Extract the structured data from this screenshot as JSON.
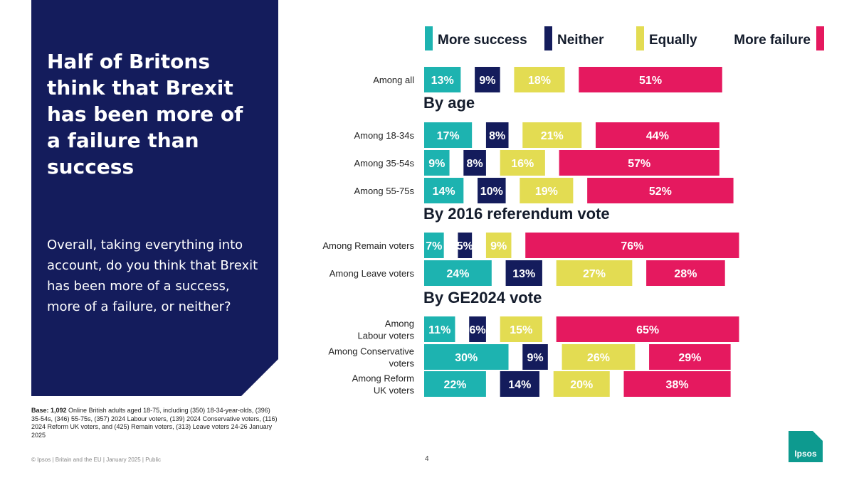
{
  "title": "Half of Britons think that Brexit has been more of a failure than success",
  "question": "Overall, taking everything into account, do you think that Brexit has been more of a success, more of a failure, or neither?",
  "base": {
    "label": "Base: 1,092",
    "text": " Online British adults aged 18-75, including (350) 18-34-year-olds, (396) 35-54s, (346) 55-75s, (357) 2024 Labour voters, (139) 2024 Conservative voters, (116) 2024 Reform UK voters, and (425) Remain voters, (313) Leave voters 24-26 January 2025"
  },
  "footer": "© Ipsos | Britain and the EU | January 2025 | Public",
  "page_number": "4",
  "logo_text": "Ipsos",
  "colors": {
    "more_success": "#1db3b0",
    "neither": "#141c5c",
    "equally": "#e3dc52",
    "more_failure": "#e5195f",
    "panel": "#141c5c"
  },
  "chart_data": {
    "type": "bar",
    "orientation": "horizontal-stacked-with-gaps",
    "legend": [
      "More success",
      "Neither",
      "Equally",
      "More failure"
    ],
    "sections": [
      "By age",
      "By 2016 referendum vote",
      "By GE2024 vote"
    ],
    "categories": [
      {
        "label": [
          "Among all"
        ],
        "section": null,
        "values": [
          13,
          9,
          18,
          51
        ]
      },
      {
        "label": [
          "Among 18-34s"
        ],
        "section": "By age",
        "values": [
          17,
          8,
          21,
          44
        ]
      },
      {
        "label": [
          "Among 35-54s"
        ],
        "section": "By age",
        "values": [
          9,
          8,
          16,
          57
        ]
      },
      {
        "label": [
          "Among 55-75s"
        ],
        "section": "By age",
        "values": [
          14,
          10,
          19,
          52
        ]
      },
      {
        "label": [
          "Among Remain voters"
        ],
        "section": "By 2016 referendum vote",
        "values": [
          7,
          5,
          9,
          76
        ]
      },
      {
        "label": [
          "Among Leave voters"
        ],
        "section": "By 2016 referendum vote",
        "values": [
          24,
          13,
          27,
          28
        ]
      },
      {
        "label": [
          "Among",
          "Labour voters"
        ],
        "section": "By GE2024 vote",
        "values": [
          11,
          6,
          15,
          65
        ]
      },
      {
        "label": [
          "Among Conservative",
          "voters"
        ],
        "section": "By GE2024 vote",
        "values": [
          30,
          9,
          26,
          29
        ]
      },
      {
        "label": [
          "Among Reform",
          "UK voters"
        ],
        "section": "By GE2024 vote",
        "values": [
          22,
          14,
          20,
          38
        ]
      }
    ],
    "value_suffix": "%"
  }
}
